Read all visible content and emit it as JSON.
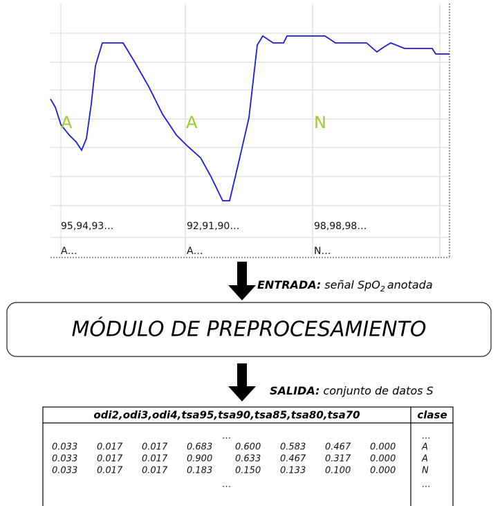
{
  "signal": {
    "annotations": [
      "A",
      "A",
      "N"
    ],
    "samples": [
      "95,94,93…",
      "92,91,90…",
      "98,98,98…"
    ],
    "labels": [
      "A…",
      "A…",
      "N…"
    ]
  },
  "input": {
    "label": "ENTRADA:",
    "text": "señal SpO",
    "subscript": "2",
    "suffix": "anotada"
  },
  "module": {
    "title": "MÓDULO DE PREPROCESAMIENTO"
  },
  "output": {
    "label": "SALIDA:",
    "text": "conjunto de datos S"
  },
  "table": {
    "header": [
      "odi2,odi3,odi4,tsa95,tsa90,tsa85,tsa80,tsa70",
      "clase"
    ],
    "rows": [
      [
        [
          "…"
        ],
        "…"
      ],
      [
        [
          "0.033",
          "0.017",
          "0.017",
          "0.683",
          "0.600",
          "0.583",
          "0.467",
          "0.000"
        ],
        "A"
      ],
      [
        [
          "0.033",
          "0.017",
          "0.017",
          "0.900",
          "0.633",
          "0.467",
          "0.317",
          "0.000"
        ],
        "A"
      ],
      [
        [
          "0.033",
          "0.017",
          "0.017",
          "0.183",
          "0.150",
          "0.133",
          "0.100",
          "0.000"
        ],
        "N"
      ],
      [
        [
          "…"
        ],
        "…"
      ]
    ]
  }
}
